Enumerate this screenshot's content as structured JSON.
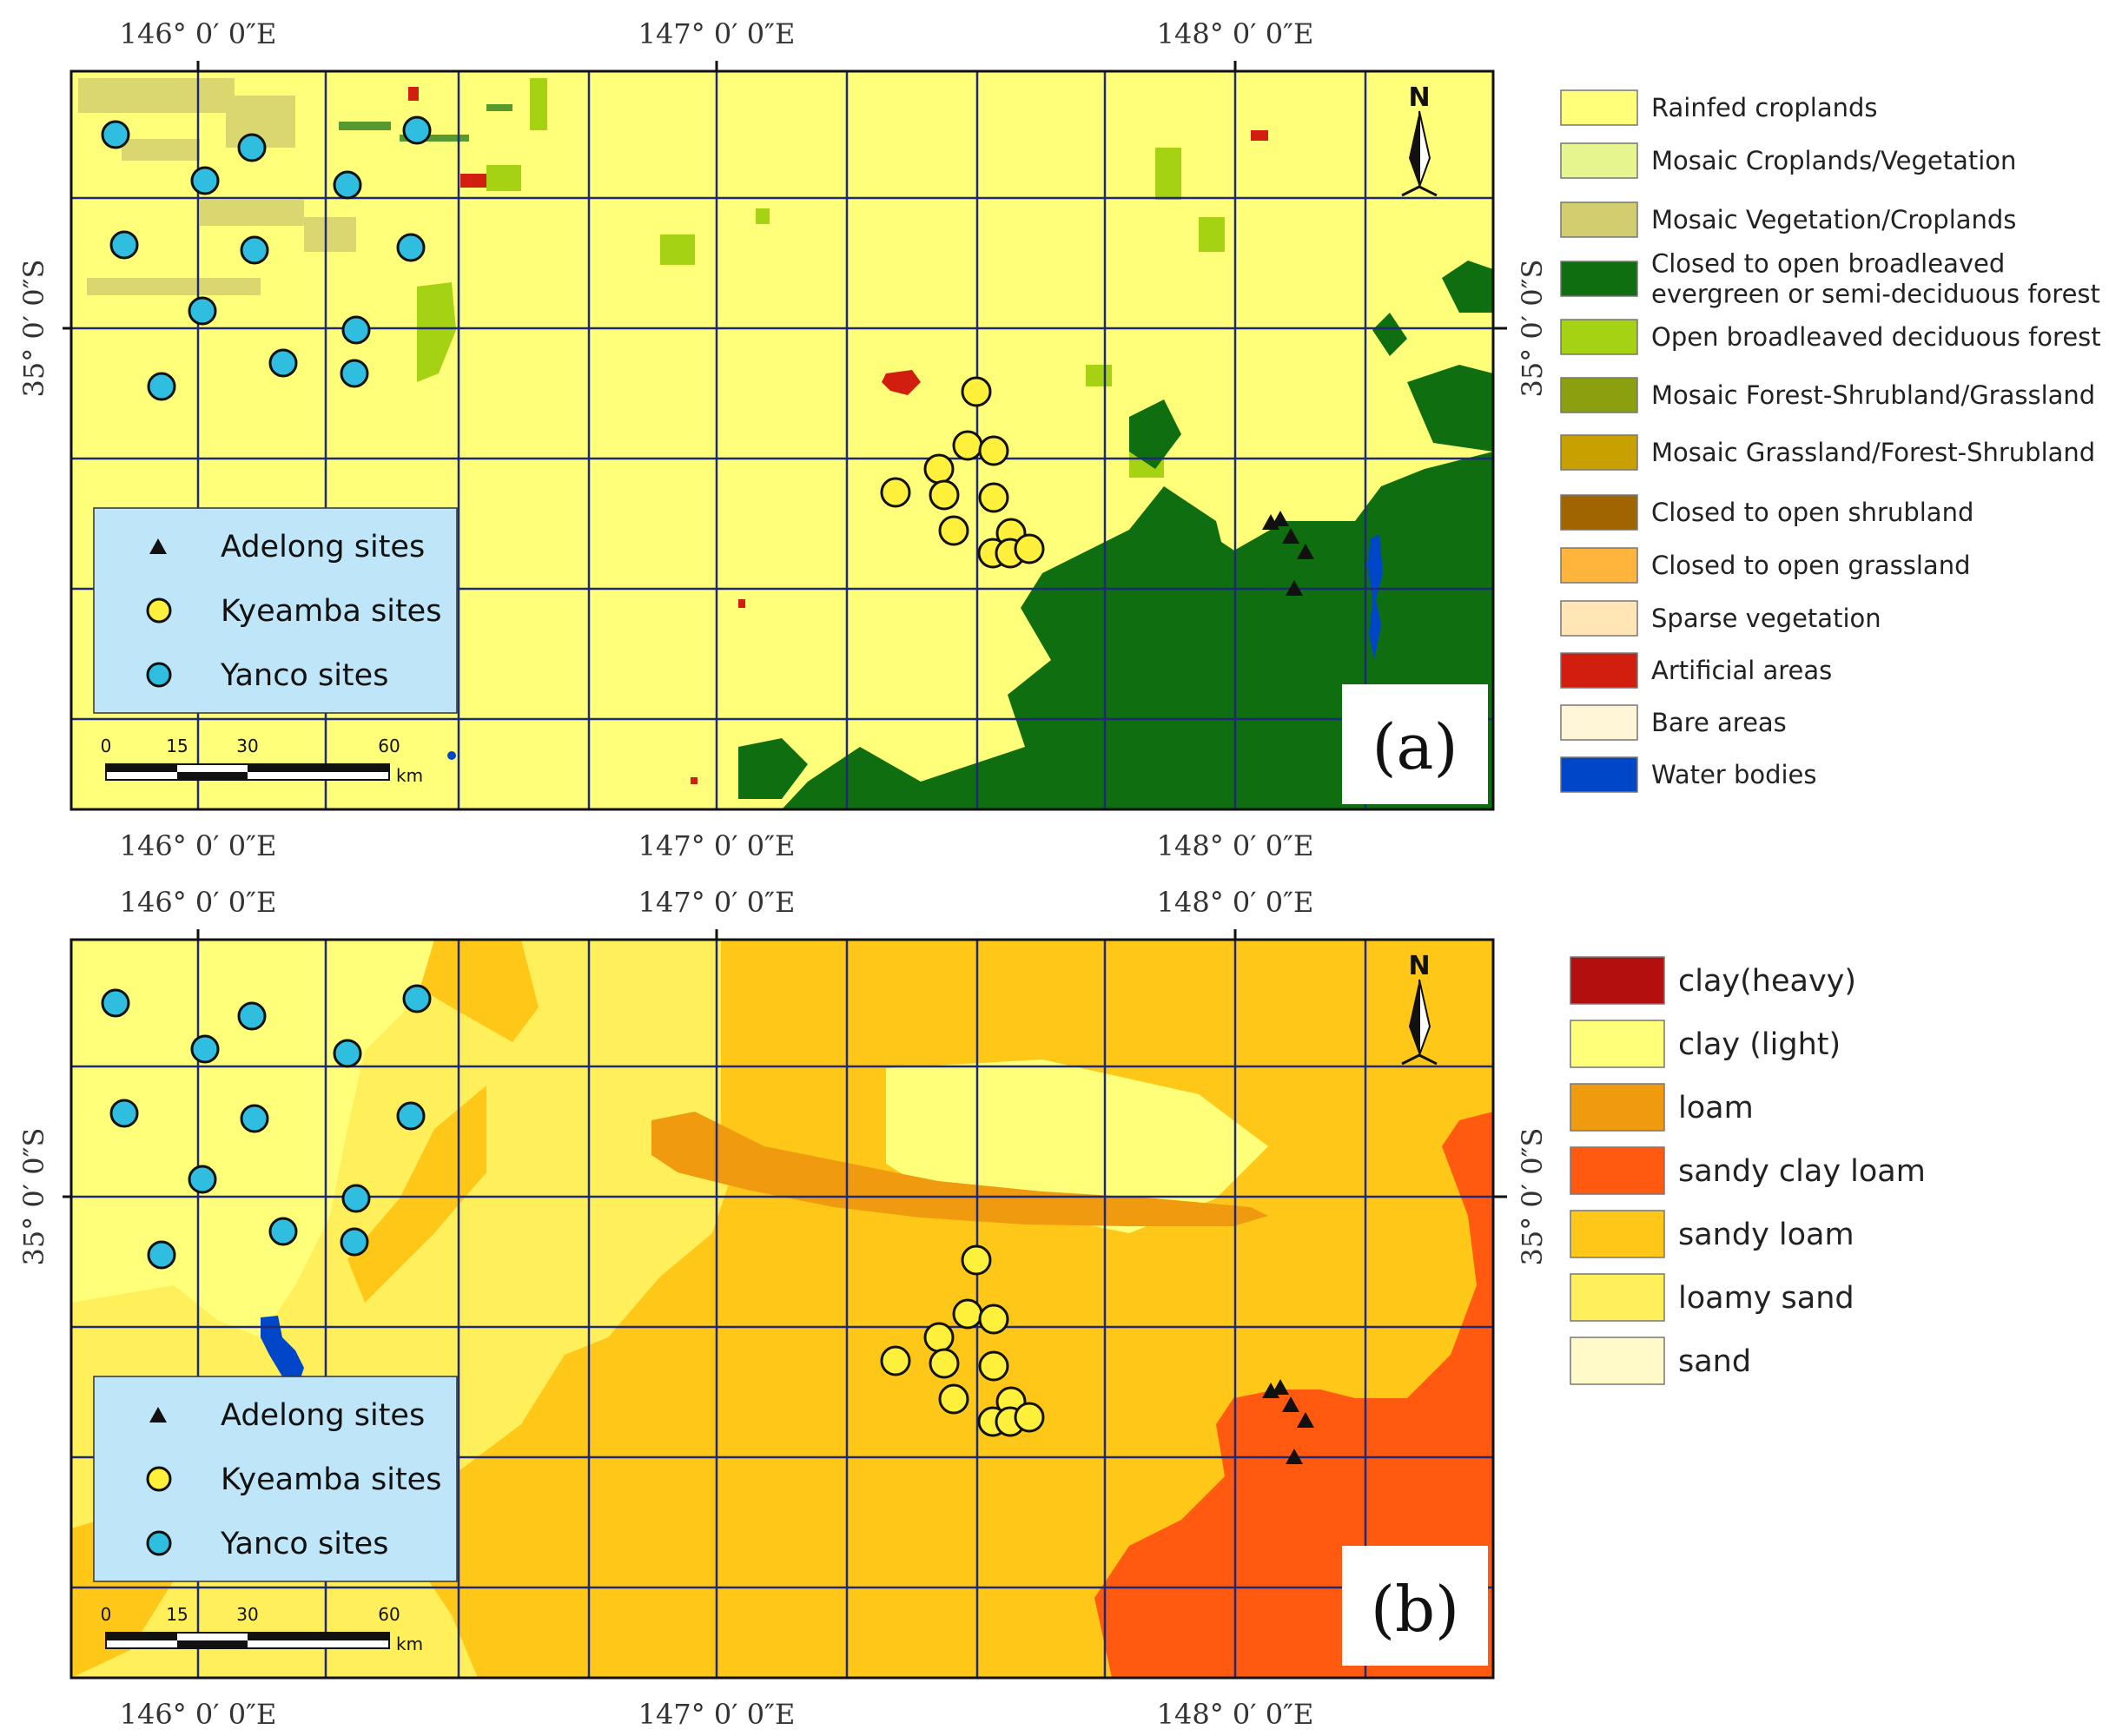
{
  "panels": [
    {
      "id": "a",
      "label": "(a)",
      "north": "N",
      "top_ticks": [
        "146° 0′ 0″E",
        "147° 0′ 0″E",
        "148° 0′ 0″E"
      ],
      "bottom_ticks": [
        "146° 0′ 0″E",
        "147° 0′ 0″E",
        "148° 0′ 0″E"
      ],
      "left_tick": "35° 0′ 0″S",
      "right_tick": "35° 0′ 0″S",
      "site_legend": [
        "Adelong sites",
        "Kyeamba sites",
        "Yanco sites"
      ],
      "scale": {
        "ticks": [
          "0",
          "15",
          "30",
          "60"
        ],
        "unit": "km"
      },
      "legend": [
        {
          "label": "Rainfed croplands",
          "color": "#FFFF7A"
        },
        {
          "label": "Mosaic Croplands/Vegetation",
          "color": "#E6F58E"
        },
        {
          "label": "Mosaic Vegetation/Croplands",
          "color": "#D2CD6E"
        },
        {
          "label": "Closed to open broadleaved evergreen or semi-deciduous forest",
          "lines": [
            "Closed to open broadleaved",
            "evergreen or semi-deciduous forest"
          ],
          "color": "#0F6E0F"
        },
        {
          "label": "Open broadleaved deciduous forest",
          "color": "#A5D212"
        },
        {
          "label": "Mosaic Forest-Shrubland/Grassland",
          "color": "#8CA00F"
        },
        {
          "label": "Mosaic Grassland/Forest-Shrubland",
          "color": "#C8A000"
        },
        {
          "label": "Closed to open shrubland",
          "color": "#A06400"
        },
        {
          "label": "Closed to open grassland",
          "color": "#FFB43C"
        },
        {
          "label": "Sparse vegetation",
          "color": "#FFE6B4"
        },
        {
          "label": "Artificial areas",
          "color": "#D21E0F"
        },
        {
          "label": "Bare areas",
          "color": "#FFF5D7"
        },
        {
          "label": "Water bodies",
          "color": "#0046C8"
        }
      ]
    },
    {
      "id": "b",
      "label": "(b)",
      "north": "N",
      "top_ticks": [
        "146° 0′ 0″E",
        "147° 0′ 0″E",
        "148° 0′ 0″E"
      ],
      "bottom_ticks": [
        "146° 0′ 0″E",
        "147° 0′ 0″E",
        "148° 0′ 0″E"
      ],
      "left_tick": "35° 0′ 0″S",
      "right_tick": "35° 0′ 0″S",
      "site_legend": [
        "Adelong sites",
        "Kyeamba sites",
        "Yanco sites"
      ],
      "scale": {
        "ticks": [
          "0",
          "15",
          "30",
          "60"
        ],
        "unit": "km"
      },
      "legend": [
        {
          "label": "clay(heavy)",
          "color": "#B40F0F"
        },
        {
          "label": "clay (light)",
          "color": "#FFFF7A"
        },
        {
          "label": "loam",
          "color": "#F09A0F"
        },
        {
          "label": "sandy clay loam",
          "color": "#FF5A0F"
        },
        {
          "label": "sandy loam",
          "color": "#FFC819"
        },
        {
          "label": "loamy sand",
          "color": "#FFEF5A"
        },
        {
          "label": "sand",
          "color": "#FFFAC8"
        }
      ]
    }
  ],
  "symbols": {
    "adelong": "triangle",
    "kyeamba": {
      "shape": "circle",
      "color": "#FFF03C"
    },
    "yanco": {
      "shape": "circle",
      "color": "#30BEE0"
    },
    "inset_bg": "#BEE6F8"
  }
}
